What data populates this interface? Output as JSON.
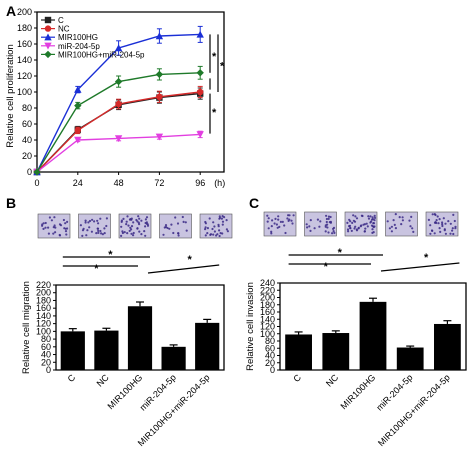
{
  "chart_data": [
    {
      "panel": "A",
      "type": "line",
      "ylabel": "Relative cell proliferation",
      "x": [
        0,
        24,
        48,
        72,
        96
      ],
      "x_unit_label": "(h)",
      "ylim": [
        0,
        200
      ],
      "yticks": [
        0,
        20,
        40,
        60,
        80,
        100,
        120,
        140,
        160,
        180,
        200
      ],
      "legend_position": "top-left",
      "series": [
        {
          "name": "C",
          "color": "#222222",
          "marker": "square",
          "values": [
            0,
            53,
            84,
            93,
            98
          ],
          "errors": [
            0,
            4,
            6,
            7,
            7
          ]
        },
        {
          "name": "NC",
          "color": "#d62a2a",
          "marker": "circle",
          "values": [
            0,
            52,
            85,
            94,
            100
          ],
          "errors": [
            0,
            4,
            6,
            7,
            7
          ]
        },
        {
          "name": "MIR100HG",
          "color": "#1a2fd6",
          "marker": "triangle-up",
          "values": [
            0,
            103,
            155,
            170,
            172
          ],
          "errors": [
            0,
            4,
            9,
            9,
            10
          ]
        },
        {
          "name": "miR-204-5p",
          "color": "#e23fe0",
          "marker": "triangle-down",
          "values": [
            0,
            40,
            42,
            44,
            47
          ],
          "errors": [
            0,
            2,
            3,
            3,
            4
          ]
        },
        {
          "name": "MIR100HG+miR-204-5p",
          "color": "#1f7a2a",
          "marker": "diamond",
          "values": [
            0,
            83,
            113,
            122,
            124
          ],
          "errors": [
            0,
            4,
            7,
            7,
            8
          ]
        }
      ],
      "annotations": [
        "*",
        "*",
        "*"
      ]
    },
    {
      "panel": "B",
      "type": "bar",
      "ylabel": "Relative cell migration",
      "categories": [
        "C",
        "NC",
        "MIR100HG",
        "miR-204-5p",
        "MIR100HG+miR-204-5p"
      ],
      "values": [
        100,
        102,
        165,
        60,
        122
      ],
      "errors": [
        7,
        6,
        11,
        5,
        9
      ],
      "ylim": [
        0,
        220
      ],
      "yticks": [
        0,
        20,
        40,
        60,
        80,
        100,
        120,
        140,
        160,
        180,
        200,
        220
      ],
      "significance": [
        "*",
        "*",
        "*"
      ]
    },
    {
      "panel": "C",
      "type": "bar",
      "ylabel": "Relative cell invasion",
      "categories": [
        "C",
        "NC",
        "MIR100HG",
        "miR-204-5p",
        "MIR100HG+miR-204-5p"
      ],
      "values": [
        98,
        102,
        188,
        62,
        127
      ],
      "errors": [
        7,
        6,
        10,
        4,
        9
      ],
      "ylim": [
        0,
        240
      ],
      "yticks": [
        0,
        20,
        40,
        60,
        80,
        100,
        120,
        140,
        160,
        180,
        200,
        220,
        240
      ],
      "significance": [
        "*",
        "*",
        "*"
      ]
    }
  ],
  "panels": {
    "a": {
      "letter": "A"
    },
    "b": {
      "letter": "B"
    },
    "c": {
      "letter": "C"
    }
  },
  "colors": {
    "micrograph_bg": "#c9c4e0",
    "micrograph_stain": "#3b2a86",
    "bar_fill": "#000000"
  }
}
